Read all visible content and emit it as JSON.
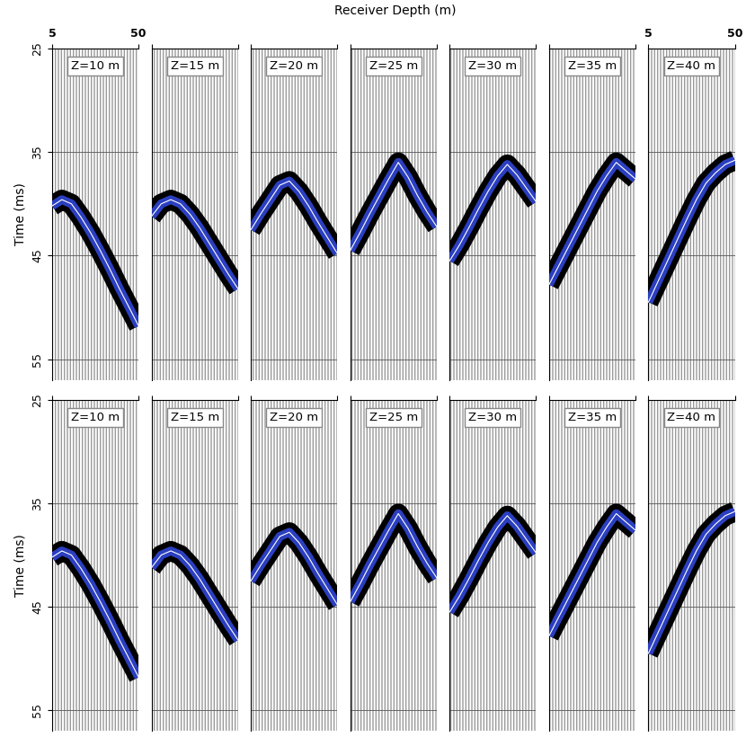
{
  "x_label": "Receiver Depth (m)",
  "chart_data": [
    {
      "type": "line",
      "title": "Z=10 m",
      "y_label": "Time (ms)",
      "x": [
        5,
        10,
        15,
        20,
        25,
        30,
        35,
        40,
        45,
        50
      ],
      "values": [
        40.2,
        39.6,
        40.0,
        41.3,
        42.8,
        44.5,
        46.3,
        48.2,
        50.0,
        51.8
      ],
      "color": "#2b3fc0",
      "xlim": [
        5,
        50
      ],
      "xticks": [
        5,
        50
      ],
      "ylim": [
        57,
        25
      ],
      "yticks": [
        25,
        35,
        45,
        55
      ],
      "grid": true,
      "tick_labels": true
    },
    {
      "type": "line",
      "title": "Z=15 m",
      "x": [
        5,
        10,
        15,
        20,
        25,
        30,
        35,
        40,
        45,
        50
      ],
      "values": [
        41.2,
        40.0,
        39.6,
        40.0,
        41.0,
        42.3,
        43.8,
        45.3,
        46.8,
        48.2
      ],
      "color": "#2b3fc0",
      "xlim": [
        5,
        50
      ],
      "xticks": [
        5,
        50
      ],
      "ylim": [
        57,
        25
      ],
      "yticks": [
        25,
        35,
        45,
        55
      ],
      "grid": true,
      "tick_labels": false
    },
    {
      "type": "line",
      "title": "Z=20 m",
      "x": [
        5,
        10,
        15,
        20,
        25,
        30,
        35,
        40,
        45,
        50
      ],
      "values": [
        42.5,
        41.0,
        39.6,
        38.2,
        37.8,
        38.8,
        40.2,
        41.8,
        43.3,
        44.8
      ],
      "color": "#2b3fc0",
      "xlim": [
        5,
        50
      ],
      "xticks": [
        5,
        50
      ],
      "ylim": [
        57,
        25
      ],
      "yticks": [
        25,
        35,
        45,
        55
      ],
      "grid": true,
      "tick_labels": false
    },
    {
      "type": "line",
      "title": "Z=25 m",
      "x": [
        5,
        10,
        15,
        20,
        25,
        30,
        35,
        40,
        45,
        50
      ],
      "values": [
        44.5,
        42.8,
        41.0,
        39.3,
        37.6,
        36.0,
        37.4,
        39.2,
        40.8,
        42.2
      ],
      "color": "#2b3fc0",
      "xlim": [
        5,
        50
      ],
      "xticks": [
        5,
        50
      ],
      "ylim": [
        57,
        25
      ],
      "yticks": [
        25,
        35,
        45,
        55
      ],
      "grid": true,
      "tick_labels": false
    },
    {
      "type": "line",
      "title": "Z=30 m",
      "x": [
        5,
        10,
        15,
        20,
        25,
        30,
        35,
        40,
        45,
        50
      ],
      "values": [
        45.5,
        44.0,
        42.3,
        40.5,
        38.8,
        37.3,
        36.2,
        37.2,
        38.5,
        39.8
      ],
      "color": "#2b3fc0",
      "xlim": [
        5,
        50
      ],
      "xticks": [
        5,
        50
      ],
      "ylim": [
        57,
        25
      ],
      "yticks": [
        25,
        35,
        45,
        55
      ],
      "grid": true,
      "tick_labels": false
    },
    {
      "type": "line",
      "title": "Z=35 m",
      "x": [
        5,
        10,
        15,
        20,
        25,
        30,
        35,
        40,
        45,
        50
      ],
      "values": [
        47.8,
        46.0,
        44.2,
        42.4,
        40.6,
        38.8,
        37.3,
        36.0,
        36.8,
        37.6
      ],
      "color": "#2b3fc0",
      "xlim": [
        5,
        50
      ],
      "xticks": [
        5,
        50
      ],
      "ylim": [
        57,
        25
      ],
      "yticks": [
        25,
        35,
        45,
        55
      ],
      "grid": true,
      "tick_labels": false
    },
    {
      "type": "line",
      "title": "Z=40 m",
      "x": [
        5,
        10,
        15,
        20,
        25,
        30,
        35,
        40,
        45,
        50
      ],
      "values": [
        49.5,
        47.5,
        45.5,
        43.5,
        41.5,
        39.6,
        38.0,
        37.0,
        36.2,
        35.8
      ],
      "color": "#2b3fc0",
      "xlim": [
        5,
        50
      ],
      "xticks": [
        5,
        50
      ],
      "ylim": [
        57,
        25
      ],
      "yticks": [
        25,
        35,
        45,
        55
      ],
      "grid": true,
      "tick_labels": "x"
    },
    {
      "type": "line",
      "title": "Z=10 m",
      "y_label": "Time (ms)",
      "x": [
        5,
        10,
        15,
        20,
        25,
        30,
        35,
        40,
        45,
        50
      ],
      "values": [
        40.2,
        39.6,
        40.0,
        41.3,
        42.8,
        44.5,
        46.3,
        48.2,
        50.0,
        51.8
      ],
      "color": "#2b3fc0",
      "xlim": [
        5,
        50
      ],
      "xticks": [
        5,
        50
      ],
      "ylim": [
        57,
        25
      ],
      "yticks": [
        25,
        35,
        45,
        55
      ],
      "grid": true,
      "tick_labels": "y"
    },
    {
      "type": "line",
      "title": "Z=15 m",
      "x": [
        5,
        10,
        15,
        20,
        25,
        30,
        35,
        40,
        45,
        50
      ],
      "values": [
        41.2,
        40.0,
        39.6,
        40.0,
        41.0,
        42.3,
        43.8,
        45.3,
        46.8,
        48.2
      ],
      "color": "#2b3fc0",
      "xlim": [
        5,
        50
      ],
      "xticks": [
        5,
        50
      ],
      "ylim": [
        57,
        25
      ],
      "yticks": [
        25,
        35,
        45,
        55
      ],
      "grid": true,
      "tick_labels": false
    },
    {
      "type": "line",
      "title": "Z=20 m",
      "x": [
        5,
        10,
        15,
        20,
        25,
        30,
        35,
        40,
        45,
        50
      ],
      "values": [
        42.5,
        41.0,
        39.6,
        38.2,
        37.8,
        38.8,
        40.2,
        41.8,
        43.3,
        44.8
      ],
      "color": "#2b3fc0",
      "xlim": [
        5,
        50
      ],
      "xticks": [
        5,
        50
      ],
      "ylim": [
        57,
        25
      ],
      "yticks": [
        25,
        35,
        45,
        55
      ],
      "grid": true,
      "tick_labels": false
    },
    {
      "type": "line",
      "title": "Z=25 m",
      "x": [
        5,
        10,
        15,
        20,
        25,
        30,
        35,
        40,
        45,
        50
      ],
      "values": [
        44.5,
        42.8,
        41.0,
        39.3,
        37.6,
        36.0,
        37.4,
        39.2,
        40.8,
        42.2
      ],
      "color": "#2b3fc0",
      "xlim": [
        5,
        50
      ],
      "xticks": [
        5,
        50
      ],
      "ylim": [
        57,
        25
      ],
      "yticks": [
        25,
        35,
        45,
        55
      ],
      "grid": true,
      "tick_labels": false
    },
    {
      "type": "line",
      "title": "Z=30 m",
      "x": [
        5,
        10,
        15,
        20,
        25,
        30,
        35,
        40,
        45,
        50
      ],
      "values": [
        45.5,
        44.0,
        42.3,
        40.5,
        38.8,
        37.3,
        36.2,
        37.2,
        38.5,
        39.8
      ],
      "color": "#2b3fc0",
      "xlim": [
        5,
        50
      ],
      "xticks": [
        5,
        50
      ],
      "ylim": [
        57,
        25
      ],
      "yticks": [
        25,
        35,
        45,
        55
      ],
      "grid": true,
      "tick_labels": false
    },
    {
      "type": "line",
      "title": "Z=35 m",
      "x": [
        5,
        10,
        15,
        20,
        25,
        30,
        35,
        40,
        45,
        50
      ],
      "values": [
        47.8,
        46.0,
        44.2,
        42.4,
        40.6,
        38.8,
        37.3,
        36.0,
        36.8,
        37.6
      ],
      "color": "#2b3fc0",
      "xlim": [
        5,
        50
      ],
      "xticks": [
        5,
        50
      ],
      "ylim": [
        57,
        25
      ],
      "yticks": [
        25,
        35,
        45,
        55
      ],
      "grid": true,
      "tick_labels": false
    },
    {
      "type": "line",
      "title": "Z=40 m",
      "x": [
        5,
        10,
        15,
        20,
        25,
        30,
        35,
        40,
        45,
        50
      ],
      "values": [
        49.5,
        47.5,
        45.5,
        43.5,
        41.5,
        39.6,
        38.0,
        37.0,
        36.2,
        35.8
      ],
      "color": "#2b3fc0",
      "xlim": [
        5,
        50
      ],
      "xticks": [
        5,
        50
      ],
      "ylim": [
        57,
        25
      ],
      "yticks": [
        25,
        35,
        45,
        55
      ],
      "grid": true,
      "tick_labels": false
    }
  ]
}
